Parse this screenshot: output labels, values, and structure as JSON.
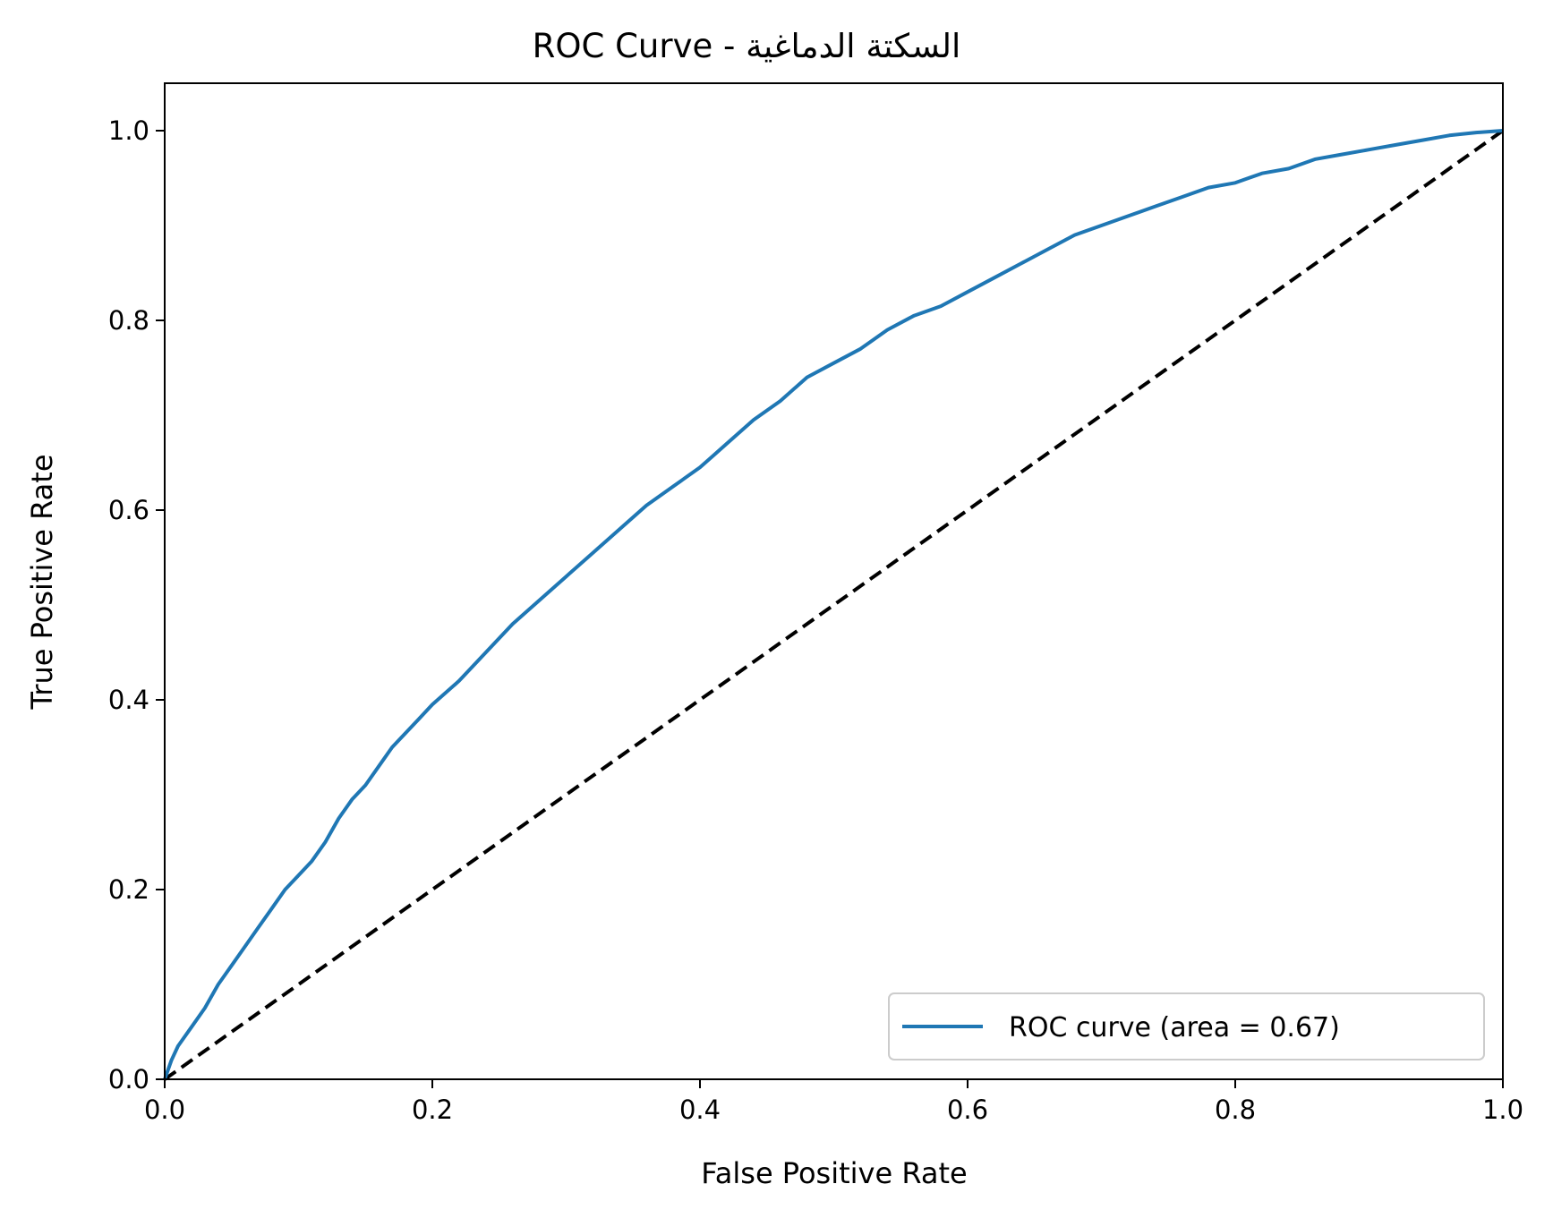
{
  "chart_data": {
    "type": "line",
    "title": "ROC Curve - السكتة الدماغية",
    "xlabel": "False Positive Rate",
    "ylabel": "True Positive Rate",
    "xlim": [
      0.0,
      1.0
    ],
    "ylim": [
      0.0,
      1.05
    ],
    "x_ticks": [
      "0.0",
      "0.2",
      "0.4",
      "0.6",
      "0.8",
      "1.0"
    ],
    "y_ticks": [
      "0.0",
      "0.2",
      "0.4",
      "0.6",
      "0.8",
      "1.0"
    ],
    "grid": false,
    "legend_position": "lower-right",
    "series": [
      {
        "name": "ROC curve (area = 0.67)",
        "color": "#1f77b4",
        "style": "solid",
        "x": [
          0.0,
          0.005,
          0.01,
          0.02,
          0.03,
          0.04,
          0.05,
          0.06,
          0.07,
          0.08,
          0.09,
          0.1,
          0.11,
          0.12,
          0.13,
          0.14,
          0.15,
          0.16,
          0.17,
          0.18,
          0.19,
          0.2,
          0.22,
          0.24,
          0.26,
          0.28,
          0.3,
          0.32,
          0.34,
          0.36,
          0.38,
          0.4,
          0.42,
          0.44,
          0.46,
          0.48,
          0.5,
          0.52,
          0.54,
          0.56,
          0.58,
          0.6,
          0.62,
          0.64,
          0.66,
          0.68,
          0.7,
          0.72,
          0.74,
          0.76,
          0.78,
          0.8,
          0.82,
          0.84,
          0.86,
          0.88,
          0.9,
          0.92,
          0.94,
          0.96,
          0.98,
          1.0
        ],
        "y": [
          0.0,
          0.02,
          0.035,
          0.055,
          0.075,
          0.1,
          0.12,
          0.14,
          0.16,
          0.18,
          0.2,
          0.215,
          0.23,
          0.25,
          0.275,
          0.295,
          0.31,
          0.33,
          0.35,
          0.365,
          0.38,
          0.395,
          0.42,
          0.45,
          0.48,
          0.505,
          0.53,
          0.555,
          0.58,
          0.605,
          0.625,
          0.645,
          0.67,
          0.695,
          0.715,
          0.74,
          0.755,
          0.77,
          0.79,
          0.805,
          0.815,
          0.83,
          0.845,
          0.86,
          0.875,
          0.89,
          0.9,
          0.91,
          0.92,
          0.93,
          0.94,
          0.945,
          0.955,
          0.96,
          0.97,
          0.975,
          0.98,
          0.985,
          0.99,
          0.995,
          0.998,
          1.0
        ]
      },
      {
        "name": "",
        "color": "#000000",
        "style": "dashed",
        "x": [
          0.0,
          1.0
        ],
        "y": [
          0.0,
          1.0
        ]
      }
    ]
  }
}
